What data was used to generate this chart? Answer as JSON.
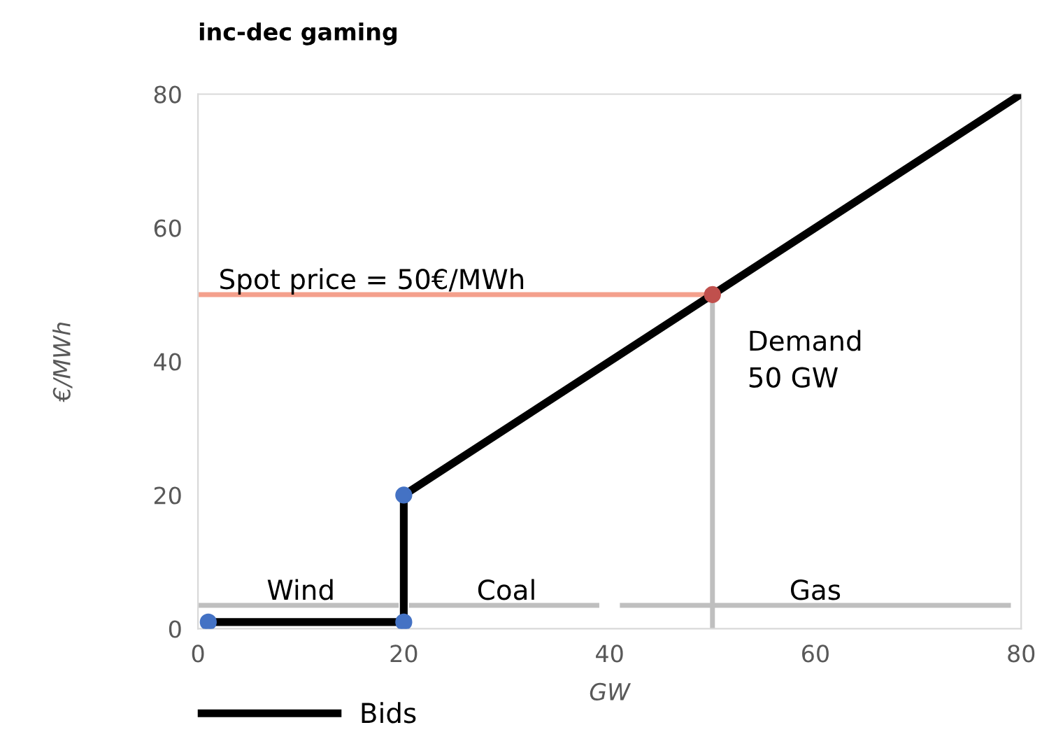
{
  "chart_data": {
    "type": "line",
    "title": "inc-dec gaming",
    "xlabel": "GW",
    "ylabel": "€/MWh",
    "xlim": [
      0,
      80
    ],
    "xticks": [
      0,
      20,
      40,
      60,
      80
    ],
    "ylim": [
      0,
      80
    ],
    "yticks": [
      0,
      20,
      40,
      60,
      80
    ],
    "grid": false,
    "legend": "bottom left",
    "line_style": "solid",
    "series": [
      {
        "color": "#bfbfbf",
        "x": [
          0,
          19.5
        ],
        "values": [
          3.5,
          3.5
        ]
      },
      {
        "color": "#bfbfbf",
        "x": [
          20.5,
          39
        ],
        "values": [
          3.5,
          3.5
        ]
      },
      {
        "color": "#bfbfbf",
        "x": [
          41,
          79
        ],
        "values": [
          3.5,
          3.5
        ]
      },
      {
        "color": "#bfbfbf",
        "x": [
          50,
          50
        ],
        "values": [
          0,
          50
        ]
      },
      {
        "color": "#f4a08c",
        "x": [
          0,
          50
        ],
        "values": [
          50,
          50
        ]
      },
      {
        "name": "Bids",
        "color": "#000000",
        "x": [
          1,
          20,
          20,
          80
        ],
        "values": [
          1,
          1,
          20,
          80
        ]
      },
      {
        "type": "scatter",
        "marker": "circle",
        "colors": [
          "#4472c4",
          "#4472c4",
          "#4472c4",
          "#c0504d"
        ],
        "x": [
          1,
          20,
          20,
          50
        ],
        "values": [
          1,
          1,
          20,
          50
        ]
      }
    ],
    "annotations": [
      {
        "text": "Wind",
        "x": 10,
        "y": 3.5
      },
      {
        "text": "Coal",
        "x": 30,
        "y": 3.5
      },
      {
        "text": "Gas",
        "x": 60,
        "y": 3.5
      },
      {
        "text": "Spot price = 50€/MWh",
        "x": 2,
        "y": 50
      },
      {
        "text": "Demand\n50 GW",
        "x": 50,
        "y": 40
      }
    ]
  }
}
